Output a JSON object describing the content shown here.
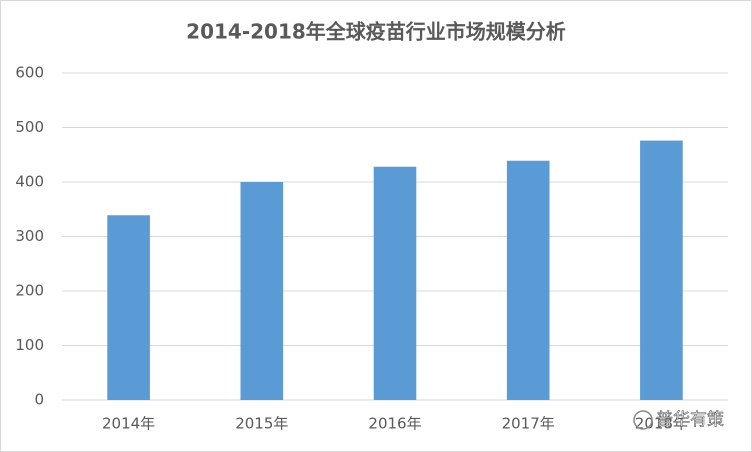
{
  "chart_data": {
    "type": "bar",
    "title": "2014-2018年全球疫苗行业市场规模分析",
    "categories": [
      "2014年",
      "2015年",
      "2016年",
      "2017年",
      "2018年"
    ],
    "values": [
      339,
      400,
      428,
      439,
      476
    ],
    "color": "#5b9bd5",
    "ylim": [
      0,
      600
    ],
    "yticks": [
      0,
      100,
      200,
      300,
      400,
      500,
      600
    ],
    "grid": true,
    "watermark": "普华有策"
  }
}
